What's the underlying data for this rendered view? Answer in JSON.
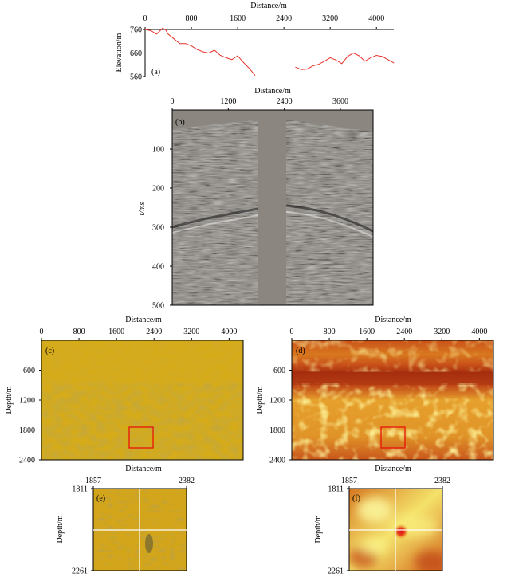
{
  "panels": {
    "a": {
      "label": "(a)",
      "xlabel": "Distance/m",
      "ylabel": "Elevation/m",
      "xticks": [
        "0",
        "800",
        "1600",
        "2400",
        "3200",
        "4000"
      ],
      "yticks": [
        "760",
        "660",
        "560"
      ]
    },
    "b": {
      "label": "(b)",
      "xlabel": "Distance/m",
      "ylabel": "t/ms",
      "xticks": [
        "0",
        "1200",
        "2400",
        "3600"
      ],
      "yticks": [
        "100",
        "200",
        "300",
        "400",
        "500"
      ]
    },
    "c": {
      "label": "(c)",
      "xlabel": "Distance/m",
      "ylabel": "Depth/m",
      "xticks": [
        "0",
        "800",
        "1600",
        "2400",
        "3200",
        "4000"
      ],
      "yticks": [
        "600",
        "1200",
        "1800",
        "2400"
      ]
    },
    "d": {
      "label": "(d)",
      "xlabel": "Distance/m",
      "ylabel": "Depth/m",
      "xticks": [
        "0",
        "800",
        "1600",
        "2400",
        "3200",
        "4000"
      ],
      "yticks": [
        "600",
        "1200",
        "1800",
        "2400"
      ]
    },
    "e": {
      "label": "(e)",
      "ylabel": "Depth/m",
      "xticks": [
        "1857",
        "2382"
      ],
      "yticks": [
        "1811",
        "2261"
      ]
    },
    "f": {
      "label": "(f)",
      "ylabel": "Depth/m",
      "xticks": [
        "1857",
        "2382"
      ],
      "yticks": [
        "1811",
        "2261"
      ]
    }
  },
  "colors": {
    "elevation_line": "#e8322b",
    "box": "#e8120a",
    "crosshair": "#ffffff",
    "seismic_gray": "#8a8680",
    "image_yellow": "#d6ab1a",
    "image_red": "#c8581a"
  },
  "chart_data": [
    {
      "type": "line",
      "panel": "a",
      "x": [
        0,
        100,
        200,
        300,
        350,
        400,
        500,
        600,
        700,
        800,
        900,
        1000,
        1100,
        1200,
        1300,
        1400,
        1500,
        1600,
        1700,
        1800,
        1900,
        2600,
        2700,
        2800,
        2900,
        3000,
        3100,
        3200,
        3300,
        3400,
        3500,
        3600,
        3700,
        3800,
        3900,
        4000,
        4100,
        4200,
        4300
      ],
      "series": [
        {
          "values": [
            760,
            755,
            740,
            765,
            760,
            740,
            720,
            700,
            700,
            690,
            675,
            665,
            660,
            672,
            650,
            640,
            632,
            648,
            620,
            595,
            565,
            600,
            590,
            592,
            605,
            612,
            625,
            640,
            630,
            615,
            645,
            660,
            648,
            625,
            640,
            650,
            645,
            632,
            618
          ]
        }
      ],
      "xlim": [
        0,
        4300
      ],
      "ylim": [
        560,
        760
      ]
    },
    {
      "type": "heatmap",
      "panel": "b",
      "xlim": [
        0,
        4300
      ],
      "ylim": [
        0,
        500
      ],
      "gap": [
        1850,
        2450
      ],
      "event_time": [
        270,
        300
      ]
    },
    {
      "type": "heatmap",
      "panel": "c",
      "xlim": [
        0,
        4300
      ],
      "ylim": [
        0,
        2400
      ],
      "box_x": [
        1857,
        2382
      ],
      "box_y": [
        1811,
        2261
      ]
    },
    {
      "type": "heatmap",
      "panel": "d",
      "xlim": [
        0,
        4300
      ],
      "ylim": [
        0,
        2400
      ],
      "box_x": [
        1857,
        2382
      ],
      "box_y": [
        1811,
        2261
      ]
    },
    {
      "type": "heatmap",
      "panel": "e",
      "xlim": [
        1857,
        2382
      ],
      "ylim": [
        1811,
        2261
      ]
    },
    {
      "type": "heatmap",
      "panel": "f",
      "xlim": [
        1857,
        2382
      ],
      "ylim": [
        1811,
        2261
      ]
    }
  ]
}
